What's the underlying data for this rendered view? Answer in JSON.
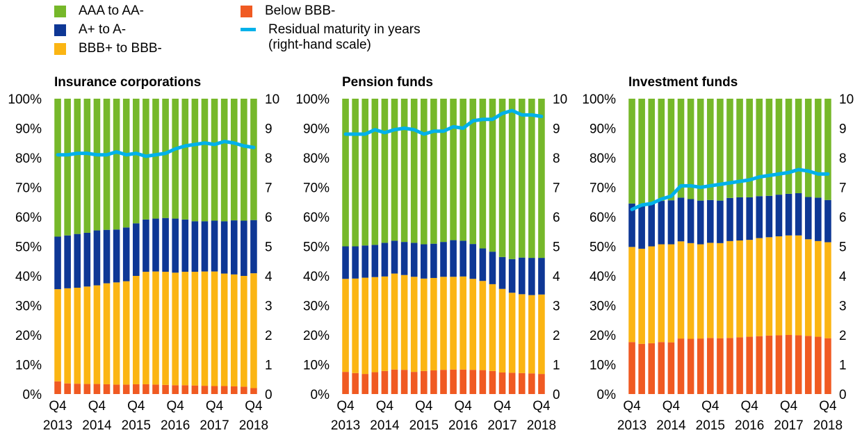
{
  "legend": {
    "aaa": "AAA to AA-",
    "a": "A+ to A-",
    "bbb": "BBB+ to BBB-",
    "below": "Below BBB-",
    "maturity": "Residual maturity in years\n(right-hand scale)"
  },
  "colors": {
    "aaa": "#76b82a",
    "a": "#0e3795",
    "bbb": "#fbb513",
    "below": "#f05a22",
    "maturity": "#00b1ea"
  },
  "chart_data": [
    {
      "type": "bar",
      "stacked": true,
      "title": "Insurance corporations",
      "categories": [
        "Q4 2013",
        "Q1 2014",
        "Q2 2014",
        "Q3 2014",
        "Q4 2014",
        "Q1 2015",
        "Q2 2015",
        "Q3 2015",
        "Q4 2015",
        "Q1 2016",
        "Q2 2016",
        "Q3 2016",
        "Q4 2016",
        "Q1 2017",
        "Q2 2017",
        "Q3 2017",
        "Q4 2017",
        "Q1 2018",
        "Q2 2018",
        "Q3 2018",
        "Q4 2018"
      ],
      "x_tick_labels": [
        {
          "q": "Q4",
          "y": "2013"
        },
        {
          "q": "Q4",
          "y": "2014"
        },
        {
          "q": "Q4",
          "y": "2015"
        },
        {
          "q": "Q4",
          "y": "2016"
        },
        {
          "q": "Q4",
          "y": "2017"
        },
        {
          "q": "Q4",
          "y": "2018"
        }
      ],
      "ylim": [
        0,
        100
      ],
      "y_ticks": [
        "0%",
        "10%",
        "20%",
        "30%",
        "40%",
        "50%",
        "60%",
        "70%",
        "80%",
        "90%",
        "100%"
      ],
      "y2lim": [
        0,
        10
      ],
      "y2_ticks": [
        "0",
        "1",
        "2",
        "3",
        "4",
        "5",
        "6",
        "7",
        "8",
        "9",
        "10"
      ],
      "series": [
        {
          "name": "Below BBB-",
          "key": "below",
          "values": [
            4.3,
            3.6,
            3.5,
            3.4,
            3.4,
            3.3,
            3.2,
            3.2,
            3.3,
            3.3,
            3.2,
            3.1,
            3.0,
            3.0,
            2.9,
            2.8,
            2.7,
            2.7,
            2.6,
            2.5,
            2.0
          ]
        },
        {
          "name": "BBB+ to BBB-",
          "key": "bbb",
          "values": [
            31.2,
            32.2,
            32.5,
            33.0,
            33.4,
            34.2,
            34.6,
            35.0,
            36.7,
            38.1,
            38.3,
            38.3,
            38.1,
            38.4,
            38.5,
            38.7,
            38.8,
            38.1,
            37.9,
            37.5,
            38.9
          ]
        },
        {
          "name": "A+ to A-",
          "key": "a",
          "values": [
            17.8,
            17.9,
            18.2,
            18.2,
            18.6,
            18.1,
            17.9,
            18.2,
            17.8,
            17.7,
            17.9,
            18.2,
            18.3,
            17.7,
            17.1,
            17.0,
            17.2,
            17.7,
            18.3,
            18.7,
            18.0
          ]
        },
        {
          "name": "AAA to AA-",
          "key": "aaa",
          "values": [
            46.7,
            46.3,
            45.8,
            45.4,
            44.6,
            44.4,
            44.3,
            43.6,
            42.2,
            40.9,
            40.6,
            40.4,
            40.6,
            40.9,
            41.5,
            41.5,
            41.3,
            41.5,
            41.2,
            41.3,
            41.1
          ]
        }
      ],
      "line": {
        "name": "Residual maturity in years",
        "axis": "right",
        "values": [
          8.1,
          8.1,
          8.15,
          8.15,
          8.1,
          8.1,
          8.2,
          8.1,
          8.15,
          8.05,
          8.1,
          8.15,
          8.3,
          8.4,
          8.45,
          8.5,
          8.45,
          8.55,
          8.5,
          8.4,
          8.35
        ]
      }
    },
    {
      "type": "bar",
      "stacked": true,
      "title": "Pension funds",
      "categories": [
        "Q4 2013",
        "Q1 2014",
        "Q2 2014",
        "Q3 2014",
        "Q4 2014",
        "Q1 2015",
        "Q2 2015",
        "Q3 2015",
        "Q4 2015",
        "Q1 2016",
        "Q2 2016",
        "Q3 2016",
        "Q4 2016",
        "Q1 2017",
        "Q2 2017",
        "Q3 2017",
        "Q4 2017",
        "Q1 2018",
        "Q2 2018",
        "Q3 2018",
        "Q4 2018"
      ],
      "x_tick_labels": [
        {
          "q": "Q4",
          "y": "2013"
        },
        {
          "q": "Q4",
          "y": "2014"
        },
        {
          "q": "Q4",
          "y": "2015"
        },
        {
          "q": "Q4",
          "y": "2016"
        },
        {
          "q": "Q4",
          "y": "2017"
        },
        {
          "q": "Q4",
          "y": "2018"
        }
      ],
      "ylim": [
        0,
        100
      ],
      "y_ticks": [
        "0%",
        "10%",
        "20%",
        "30%",
        "40%",
        "50%",
        "60%",
        "70%",
        "80%",
        "90%",
        "100%"
      ],
      "y2lim": [
        0,
        10
      ],
      "y2_ticks": [
        "0",
        "1",
        "2",
        "3",
        "4",
        "5",
        "6",
        "7",
        "8",
        "9",
        "10"
      ],
      "series": [
        {
          "name": "Below BBB-",
          "key": "below",
          "values": [
            7.5,
            7.1,
            6.8,
            7.4,
            7.8,
            8.3,
            8.2,
            7.5,
            7.8,
            8.0,
            8.2,
            8.3,
            8.3,
            8.2,
            8.1,
            7.8,
            7.3,
            7.2,
            7.1,
            7.0,
            6.8
          ]
        },
        {
          "name": "BBB+ to BBB-",
          "key": "bbb",
          "values": [
            31.5,
            32.0,
            32.6,
            32.2,
            32.0,
            32.5,
            32.1,
            32.2,
            31.3,
            31.3,
            31.5,
            31.4,
            31.5,
            30.8,
            30.2,
            29.4,
            28.3,
            27.1,
            26.7,
            26.5,
            26.9
          ]
        },
        {
          "name": "A+ to A-",
          "key": "a",
          "values": [
            11.0,
            10.9,
            10.9,
            10.9,
            11.4,
            11.1,
            11.2,
            11.5,
            11.6,
            11.6,
            11.8,
            12.4,
            12.1,
            11.8,
            11.0,
            11.0,
            10.8,
            11.4,
            12.4,
            12.6,
            12.4
          ]
        },
        {
          "name": "AAA to AA-",
          "key": "aaa",
          "values": [
            50.0,
            50.0,
            49.7,
            49.5,
            48.8,
            48.1,
            48.5,
            48.8,
            49.3,
            49.1,
            48.5,
            47.9,
            48.1,
            49.2,
            50.7,
            51.8,
            53.6,
            54.3,
            53.8,
            53.9,
            53.9
          ]
        }
      ],
      "line": {
        "name": "Residual maturity in years",
        "axis": "right",
        "values": [
          8.8,
          8.8,
          8.8,
          8.95,
          8.85,
          8.95,
          9.0,
          8.95,
          8.8,
          8.9,
          8.9,
          9.05,
          9.0,
          9.25,
          9.3,
          9.3,
          9.5,
          9.6,
          9.45,
          9.45,
          9.4
        ]
      }
    },
    {
      "type": "bar",
      "stacked": true,
      "title": "Investment funds",
      "categories": [
        "Q4 2013",
        "Q1 2014",
        "Q2 2014",
        "Q3 2014",
        "Q4 2014",
        "Q1 2015",
        "Q2 2015",
        "Q3 2015",
        "Q4 2015",
        "Q1 2016",
        "Q2 2016",
        "Q3 2016",
        "Q4 2016",
        "Q1 2017",
        "Q2 2017",
        "Q3 2017",
        "Q4 2017",
        "Q1 2018",
        "Q2 2018",
        "Q3 2018",
        "Q4 2018"
      ],
      "x_tick_labels": [
        {
          "q": "Q4",
          "y": "2013"
        },
        {
          "q": "Q4",
          "y": "2014"
        },
        {
          "q": "Q4",
          "y": "2015"
        },
        {
          "q": "Q4",
          "y": "2016"
        },
        {
          "q": "Q4",
          "y": "2017"
        },
        {
          "q": "Q4",
          "y": "2018"
        }
      ],
      "ylim": [
        0,
        100
      ],
      "y_ticks": [
        "0%",
        "10%",
        "20%",
        "30%",
        "40%",
        "50%",
        "60%",
        "70%",
        "80%",
        "90%",
        "100%"
      ],
      "y2lim": [
        0,
        10
      ],
      "y2_ticks": [
        "0",
        "1",
        "2",
        "3",
        "4",
        "5",
        "6",
        "7",
        "8",
        "9",
        "10"
      ],
      "series": [
        {
          "name": "Below BBB-",
          "key": "below",
          "values": [
            17.6,
            17.0,
            17.2,
            17.6,
            17.5,
            18.8,
            18.7,
            18.8,
            19.0,
            18.9,
            19.0,
            19.2,
            19.4,
            19.6,
            19.8,
            19.9,
            20.0,
            19.9,
            19.7,
            19.4,
            18.9
          ]
        },
        {
          "name": "BBB+ to BBB-",
          "key": "bbb",
          "values": [
            32.2,
            32.2,
            32.8,
            33.1,
            33.2,
            32.9,
            32.4,
            31.9,
            32.2,
            32.2,
            32.8,
            32.8,
            32.8,
            33.2,
            33.3,
            33.5,
            33.7,
            33.8,
            32.7,
            32.4,
            32.5
          ]
        },
        {
          "name": "A+ to A-",
          "key": "a",
          "values": [
            14.7,
            14.8,
            14.8,
            14.7,
            14.9,
            14.8,
            14.9,
            14.8,
            14.5,
            14.4,
            14.6,
            14.6,
            14.4,
            14.2,
            14.0,
            14.1,
            14.1,
            14.3,
            14.3,
            14.7,
            14.3
          ]
        },
        {
          "name": "AAA to AA-",
          "key": "aaa",
          "values": [
            35.5,
            36.0,
            35.2,
            34.6,
            34.4,
            33.5,
            34.0,
            34.5,
            34.3,
            34.5,
            33.6,
            33.4,
            33.4,
            33.0,
            32.9,
            32.5,
            32.2,
            32.0,
            33.3,
            33.5,
            34.3
          ]
        }
      ],
      "line": {
        "name": "Residual maturity in years",
        "axis": "right",
        "values": [
          6.25,
          6.4,
          6.45,
          6.6,
          6.7,
          7.05,
          7.05,
          7.0,
          7.05,
          7.1,
          7.15,
          7.2,
          7.25,
          7.35,
          7.4,
          7.45,
          7.5,
          7.6,
          7.55,
          7.45,
          7.45
        ]
      }
    }
  ]
}
